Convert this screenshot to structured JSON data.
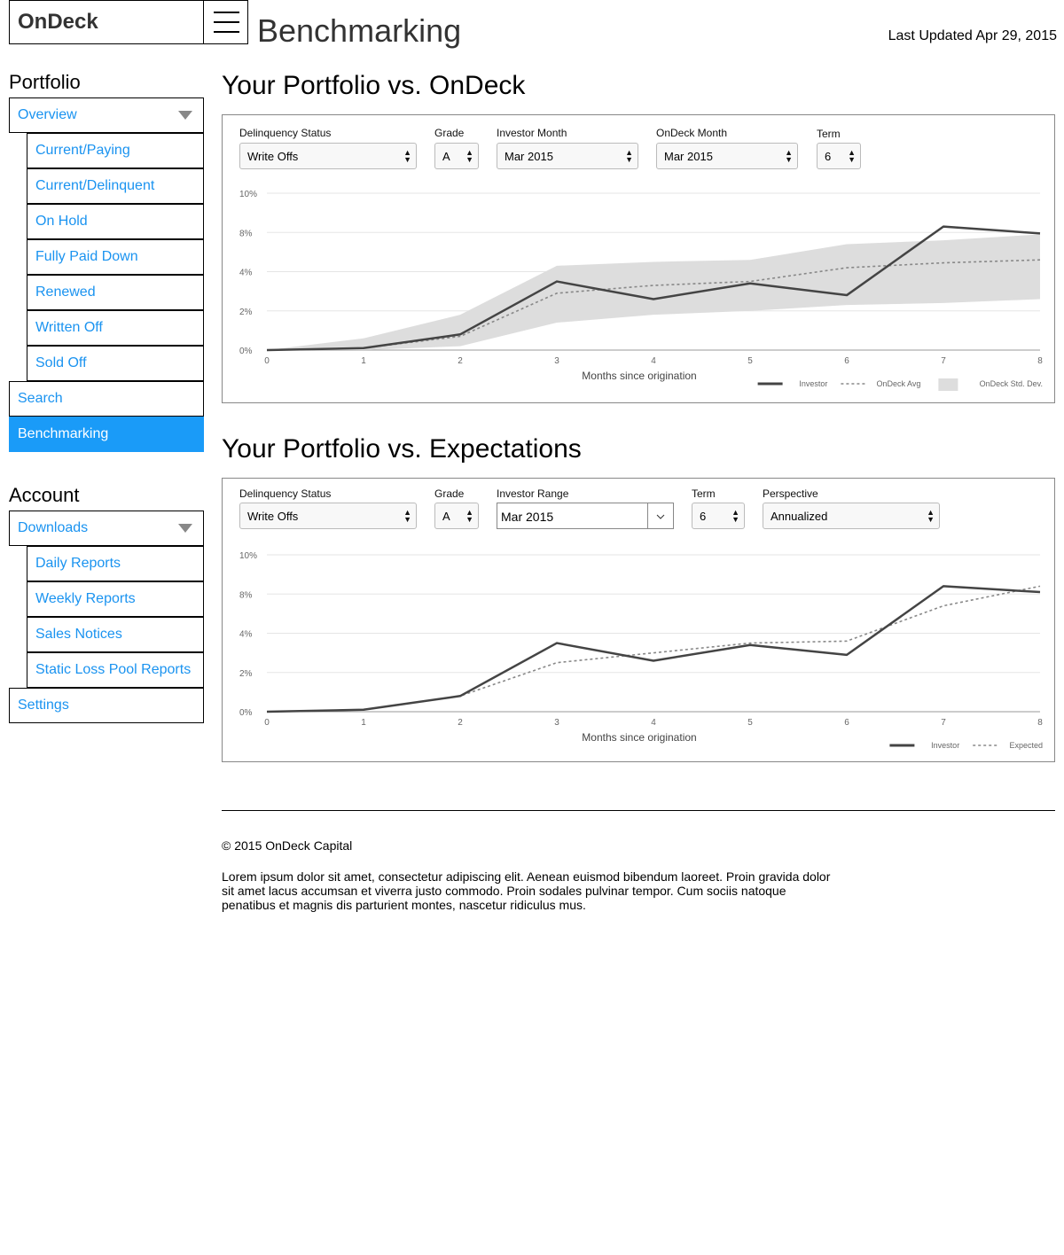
{
  "header": {
    "logo": "OnDeck",
    "page_title": "Benchmarking",
    "last_updated": "Last Updated Apr 29, 2015"
  },
  "sidebar": {
    "portfolio_label": "Portfolio",
    "overview": "Overview",
    "portfolio_items": [
      "Current/Paying",
      "Current/Delinquent",
      "On Hold",
      "Fully Paid Down",
      "Renewed",
      "Written Off",
      "Sold Off"
    ],
    "search": "Search",
    "benchmarking": "Benchmarking",
    "account_label": "Account",
    "downloads": "Downloads",
    "download_items": [
      "Daily Reports",
      "Weekly Reports",
      "Sales Notices",
      "Static Loss Pool Reports"
    ],
    "settings": "Settings"
  },
  "section1": {
    "title": "Your Portfolio vs. OnDeck",
    "controls": {
      "delinquency_label": "Delinquency Status",
      "delinquency_value": "Write Offs",
      "grade_label": "Grade",
      "grade_value": "A",
      "investor_month_label": "Investor Month",
      "investor_month_value": "Mar 2015",
      "ondeck_month_label": "OnDeck Month",
      "ondeck_month_value": "Mar 2015",
      "term_label": "Term",
      "term_value": "6"
    }
  },
  "section2": {
    "title": "Your Portfolio vs. Expectations",
    "controls": {
      "delinquency_label": "Delinquency Status",
      "delinquency_value": "Write Offs",
      "grade_label": "Grade",
      "grade_value": "A",
      "investor_range_label": "Investor Range",
      "investor_range_value": "Mar 2015",
      "term_label": "Term",
      "term_value": "6",
      "perspective_label": "Perspective",
      "perspective_value": "Annualized"
    }
  },
  "chart_data": [
    {
      "type": "line",
      "xlabel": "Months since origination",
      "ylabel": "",
      "x": [
        0,
        1,
        2,
        3,
        4,
        5,
        6,
        7,
        8
      ],
      "y_tick_labels": [
        "0%",
        "2%",
        "4%",
        "8%",
        "10%"
      ],
      "grid": true,
      "legend_position": "bottom-right",
      "series": [
        {
          "name": "Investor",
          "style": "solid",
          "color": "#444444",
          "values": [
            0,
            0.1,
            0.8,
            3.5,
            2.6,
            3.4,
            2.8,
            8.3,
            7.9
          ]
        },
        {
          "name": "OnDeck Avg",
          "style": "dashed",
          "color": "#888888",
          "values": [
            0,
            0.1,
            0.7,
            2.9,
            3.3,
            3.5,
            4.4,
            4.9,
            5.2
          ]
        },
        {
          "name": "OnDeck Std. Dev.",
          "style": "band",
          "color": "#dddddd",
          "lower": [
            0,
            0,
            0.2,
            1.4,
            1.8,
            2.0,
            2.3,
            2.4,
            2.6
          ],
          "upper": [
            0,
            0.6,
            1.8,
            4.6,
            5.0,
            5.2,
            6.8,
            7.2,
            7.8
          ]
        }
      ]
    },
    {
      "type": "line",
      "xlabel": "Months since origination",
      "ylabel": "",
      "x": [
        0,
        1,
        2,
        3,
        4,
        5,
        6,
        7,
        8
      ],
      "y_tick_labels": [
        "0%",
        "2%",
        "4%",
        "8%",
        "10%"
      ],
      "grid": true,
      "legend_position": "bottom-right",
      "series": [
        {
          "name": "Investor",
          "style": "solid",
          "color": "#444444",
          "values": [
            0,
            0.1,
            0.8,
            3.5,
            2.6,
            3.4,
            2.9,
            8.4,
            8.1
          ]
        },
        {
          "name": "Expected",
          "style": "dashed",
          "color": "#888888",
          "values": [
            0,
            0.1,
            0.8,
            2.5,
            3.0,
            3.5,
            3.6,
            6.8,
            8.4
          ]
        }
      ]
    }
  ],
  "footer": {
    "copyright": "© 2015 OnDeck Capital",
    "text": "Lorem ipsum dolor sit amet, consectetur adipiscing elit. Aenean euismod bibendum laoreet. Proin gravida dolor sit amet lacus accumsan et viverra justo commodo. Proin sodales pulvinar tempor. Cum sociis natoque penatibus et magnis dis parturient montes, nascetur ridiculus mus."
  }
}
